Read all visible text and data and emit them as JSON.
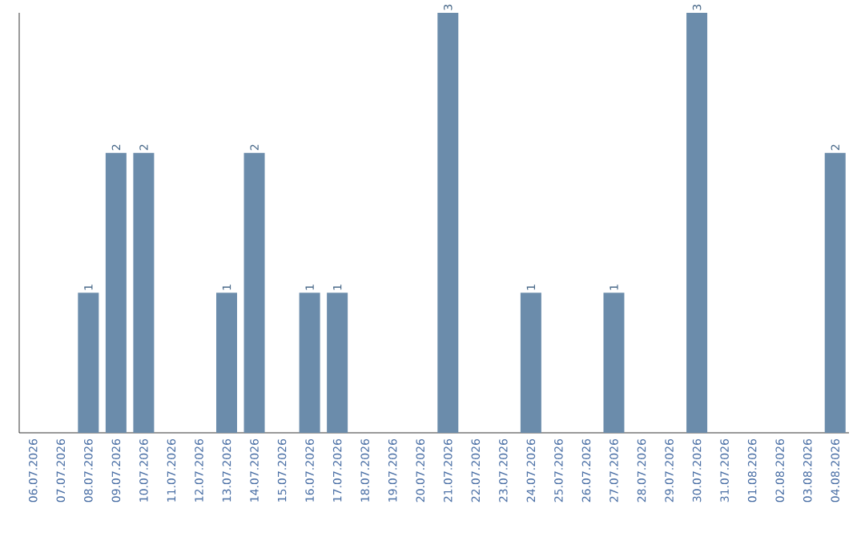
{
  "chart_data": {
    "type": "bar",
    "categories": [
      "06.07.2026",
      "07.07.2026",
      "08.07.2026",
      "09.07.2026",
      "10.07.2026",
      "11.07.2026",
      "12.07.2026",
      "13.07.2026",
      "14.07.2026",
      "15.07.2026",
      "16.07.2026",
      "17.07.2026",
      "18.07.2026",
      "19.07.2026",
      "20.07.2026",
      "21.07.2026",
      "22.07.2026",
      "23.07.2026",
      "24.07.2026",
      "25.07.2026",
      "26.07.2026",
      "27.07.2026",
      "28.07.2026",
      "29.07.2026",
      "30.07.2026",
      "31.07.2026",
      "01.08.2026",
      "02.08.2026",
      "03.08.2026",
      "04.08.2026"
    ],
    "values": [
      0,
      0,
      1,
      2,
      2,
      0,
      0,
      1,
      2,
      0,
      1,
      1,
      0,
      0,
      0,
      3,
      0,
      0,
      1,
      0,
      0,
      1,
      0,
      0,
      3,
      0,
      0,
      0,
      0,
      2
    ],
    "value_labels": [
      null,
      null,
      "1",
      "2",
      "2",
      null,
      null,
      "1",
      "2",
      null,
      "1",
      "1",
      null,
      null,
      null,
      "3",
      null,
      null,
      "1",
      null,
      null,
      "1",
      null,
      null,
      "3",
      null,
      null,
      null,
      null,
      "2"
    ],
    "color": "#6b8cab"
  }
}
